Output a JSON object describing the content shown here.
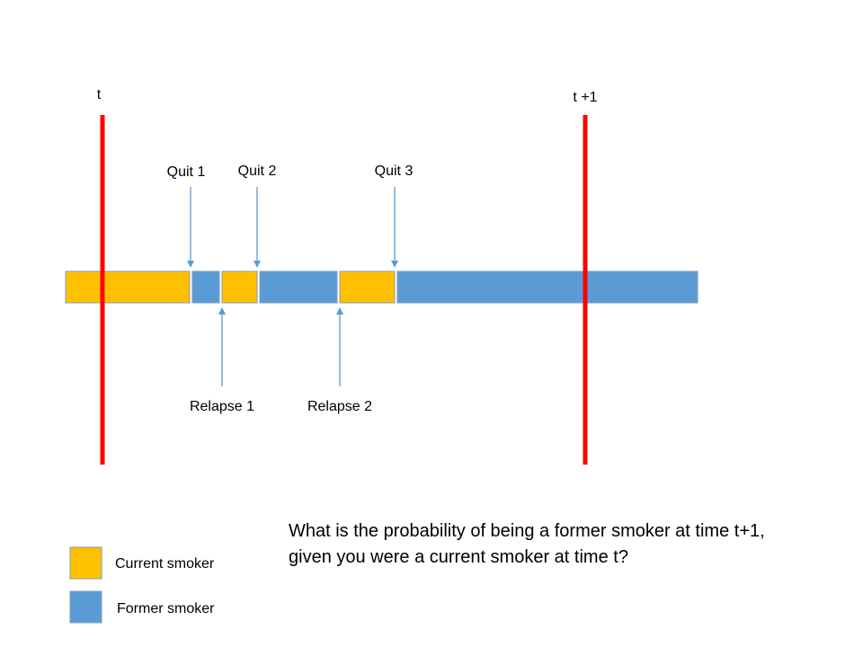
{
  "time_markers": [
    {
      "label": "t"
    },
    {
      "label": "t +1"
    }
  ],
  "timeline": {
    "segments": [
      {
        "state": "current"
      },
      {
        "state": "former"
      },
      {
        "state": "current"
      },
      {
        "state": "former"
      },
      {
        "state": "current"
      },
      {
        "state": "former"
      }
    ]
  },
  "events": {
    "quits": [
      {
        "label": "Quit 1"
      },
      {
        "label": "Quit 2"
      },
      {
        "label": "Quit 3"
      }
    ],
    "relapses": [
      {
        "label": "Relapse 1"
      },
      {
        "label": "Relapse 2"
      }
    ]
  },
  "legend": {
    "current": {
      "label": "Current smoker",
      "color": "#FFC000"
    },
    "former": {
      "label": "Former smoker",
      "color": "#5B9BD5"
    }
  },
  "question": {
    "line1": "What is the probability of being a former smoker at time t+1,",
    "line2": "given you were a current smoker at time t?"
  },
  "colors": {
    "marker": "#FF0000",
    "arrow": "#5B9BD5",
    "outline": "#7F9DB9"
  }
}
